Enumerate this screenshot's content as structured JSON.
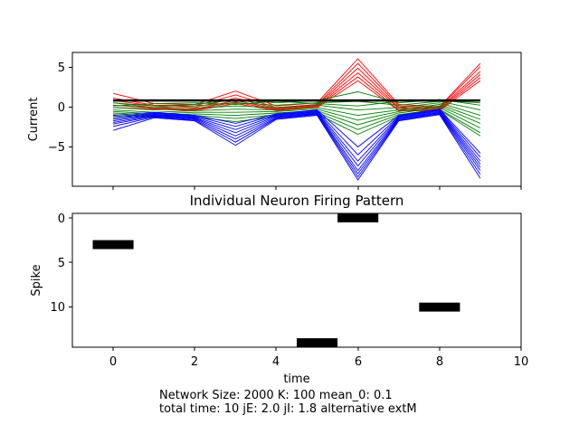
{
  "top_panel": {
    "ylabel": "Current",
    "yticks": [
      "5",
      "0",
      "−5"
    ]
  },
  "bottom_panel": {
    "title": "Individual Neuron Firing Pattern",
    "xlabel": "time",
    "ylabel": "Spike",
    "yticks": [
      "0",
      "5",
      "10"
    ],
    "xticks": [
      "0",
      "2",
      "4",
      "6",
      "8",
      "10"
    ]
  },
  "caption": {
    "line1": "Network Size: 2000  K: 100  mean_0: 0.1",
    "line2": "total time: 10   jE: 2.0   jI: 1.8 alternative extM"
  },
  "colors": {
    "excitatory": "#ff0000",
    "inhibitory": "#0000ff",
    "mixed": "#008000",
    "mean": "#000000",
    "spike": "#000000"
  },
  "chart_data": [
    {
      "type": "line",
      "ylabel": "Current",
      "xlim": [
        -1,
        10
      ],
      "ylim": [
        -10,
        7
      ],
      "x": [
        0,
        1,
        2,
        3,
        4,
        5,
        6,
        7,
        8,
        9
      ],
      "series_groups": [
        {
          "color": "red",
          "lines": [
            [
              1.8,
              0.5,
              0.4,
              2.1,
              0.2,
              0.6,
              6.2,
              0.4,
              0.1,
              5.6
            ],
            [
              1.2,
              0.3,
              0.2,
              1.6,
              0.0,
              0.4,
              5.6,
              0.2,
              0.0,
              5.2
            ],
            [
              0.9,
              0.2,
              0.0,
              1.2,
              -0.1,
              0.3,
              5.0,
              0.0,
              -0.1,
              4.6
            ],
            [
              0.6,
              0.0,
              -0.2,
              0.9,
              -0.2,
              0.2,
              4.4,
              -0.1,
              -0.2,
              4.2
            ],
            [
              0.3,
              -0.1,
              -0.3,
              0.7,
              -0.3,
              0.1,
              3.9,
              -0.3,
              -0.3,
              3.8
            ],
            [
              0.0,
              -0.2,
              -0.4,
              0.5,
              -0.4,
              0.0,
              3.4,
              -0.4,
              -0.4,
              3.4
            ]
          ]
        },
        {
          "color": "green",
          "lines": [
            [
              0.6,
              0.2,
              0.4,
              1.0,
              0.6,
              0.9,
              2.0,
              0.6,
              1.0,
              0.3
            ],
            [
              0.3,
              0.0,
              0.2,
              0.6,
              0.3,
              0.6,
              0.8,
              0.3,
              0.8,
              -0.3
            ],
            [
              0.0,
              -0.3,
              -0.1,
              0.2,
              0.0,
              0.3,
              -0.3,
              0.0,
              0.6,
              -1.0
            ],
            [
              -0.3,
              -0.6,
              -0.4,
              -0.2,
              -0.3,
              0.0,
              -1.0,
              -0.3,
              0.4,
              -1.5
            ],
            [
              -0.5,
              -0.8,
              -0.6,
              -0.6,
              -0.5,
              -0.2,
              -1.6,
              -0.5,
              0.2,
              -2.0
            ],
            [
              -0.7,
              -1.0,
              -0.8,
              -1.0,
              -0.7,
              -0.4,
              -2.2,
              -0.7,
              0.0,
              -2.6
            ],
            [
              -0.9,
              -1.1,
              -1.0,
              -1.4,
              -0.9,
              -0.6,
              -2.8,
              -0.9,
              -0.2,
              -3.2
            ],
            [
              -1.1,
              -1.2,
              -1.2,
              -1.8,
              -1.1,
              -0.8,
              -3.4,
              -1.1,
              -0.3,
              -3.6
            ],
            [
              0.2,
              0.5,
              0.6,
              0.4,
              0.8,
              0.5,
              0.2,
              0.8,
              0.9,
              0.6
            ]
          ]
        },
        {
          "color": "blue",
          "lines": [
            [
              -1.0,
              -0.6,
              -1.0,
              -2.0,
              -0.8,
              -0.3,
              -5.0,
              -1.0,
              -0.2,
              -5.8
            ],
            [
              -1.3,
              -0.7,
              -1.1,
              -2.4,
              -0.9,
              -0.4,
              -6.0,
              -1.1,
              -0.3,
              -6.3
            ],
            [
              -1.5,
              -0.8,
              -1.2,
              -2.8,
              -1.0,
              -0.5,
              -6.8,
              -1.2,
              -0.4,
              -6.8
            ],
            [
              -1.7,
              -0.9,
              -1.3,
              -3.2,
              -1.1,
              -0.6,
              -7.4,
              -1.3,
              -0.5,
              -7.2
            ],
            [
              -1.9,
              -1.0,
              -1.4,
              -3.6,
              -1.2,
              -0.7,
              -8.0,
              -1.4,
              -0.6,
              -7.6
            ],
            [
              -2.1,
              -1.1,
              -1.5,
              -4.0,
              -1.3,
              -0.8,
              -8.4,
              -1.5,
              -0.7,
              -8.0
            ],
            [
              -2.4,
              -1.2,
              -1.6,
              -4.4,
              -1.4,
              -0.9,
              -8.8,
              -1.6,
              -0.8,
              -8.5
            ],
            [
              -2.9,
              -1.3,
              -1.7,
              -4.8,
              -1.5,
              -1.0,
              -9.2,
              -1.7,
              -0.9,
              -9.0
            ]
          ]
        },
        {
          "color": "black",
          "mean": true,
          "lines": [
            [
              0.9,
              0.9,
              0.9,
              0.9,
              0.9,
              0.9,
              0.9,
              0.9,
              0.9,
              0.9
            ]
          ]
        }
      ]
    },
    {
      "type": "heatmap",
      "title": "Individual Neuron Firing Pattern",
      "xlabel": "time",
      "ylabel": "Spike",
      "xlim": [
        -1,
        10
      ],
      "ylim": [
        14.5,
        -0.5
      ],
      "spikes": [
        {
          "time": 0,
          "neuron": 3
        },
        {
          "time": 5,
          "neuron": 14
        },
        {
          "time": 6,
          "neuron": 0
        },
        {
          "time": 8,
          "neuron": 10
        }
      ]
    }
  ]
}
